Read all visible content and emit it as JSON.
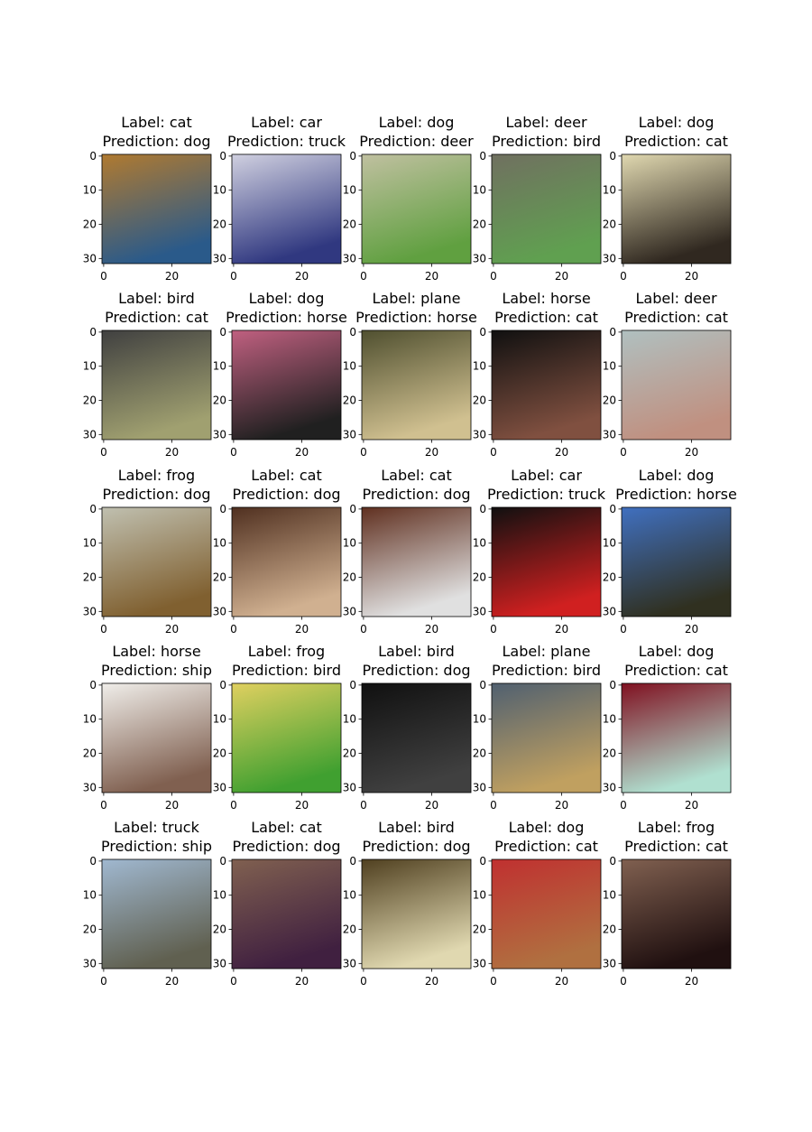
{
  "panels": [
    {
      "title": [
        "Label: cat",
        "Prediction: dog"
      ]
    },
    {
      "title": [
        "Label: car",
        "Prediction: truck"
      ]
    },
    {
      "title": [
        "Label: dog",
        "Prediction: deer"
      ]
    },
    {
      "title": [
        "Label: deer",
        "Prediction: bird"
      ]
    },
    {
      "title": [
        "Label: dog",
        "Prediction: cat"
      ]
    },
    {
      "title": [
        "Label: bird",
        "Prediction: cat"
      ]
    },
    {
      "title": [
        "Label: dog",
        "Prediction: horse"
      ]
    },
    {
      "title": [
        "Label: plane",
        "Prediction: horse"
      ]
    },
    {
      "title": [
        "Label: horse",
        "Prediction: cat"
      ]
    },
    {
      "title": [
        "Label: deer",
        "Prediction: cat"
      ]
    },
    {
      "title": [
        "Label: frog",
        "Prediction: dog"
      ]
    },
    {
      "title": [
        "Label: cat",
        "Prediction: dog"
      ]
    },
    {
      "title": [
        "Label: cat",
        "Prediction: dog"
      ]
    },
    {
      "title": [
        "Label: car",
        "Prediction: truck"
      ]
    },
    {
      "title": [
        "Label: dog",
        "Prediction: horse"
      ]
    },
    {
      "title": [
        "Label: horse",
        "Prediction: ship"
      ]
    },
    {
      "title": [
        "Label: frog",
        "Prediction: bird"
      ]
    },
    {
      "title": [
        "Label: bird",
        "Prediction: dog"
      ]
    },
    {
      "title": [
        "Label: plane",
        "Prediction: bird"
      ]
    },
    {
      "title": [
        "Label: dog",
        "Prediction: cat"
      ]
    },
    {
      "title": [
        "Label: truck",
        "Prediction: ship"
      ]
    },
    {
      "title": [
        "Label: cat",
        "Prediction: dog"
      ]
    },
    {
      "title": [
        "Label: bird",
        "Prediction: dog"
      ]
    },
    {
      "title": [
        "Label: dog",
        "Prediction: cat"
      ]
    },
    {
      "title": [
        "Label: frog",
        "Prediction: cat"
      ]
    }
  ],
  "xticks": [
    0,
    20
  ],
  "yticks": [
    0,
    10,
    20,
    30
  ]
}
